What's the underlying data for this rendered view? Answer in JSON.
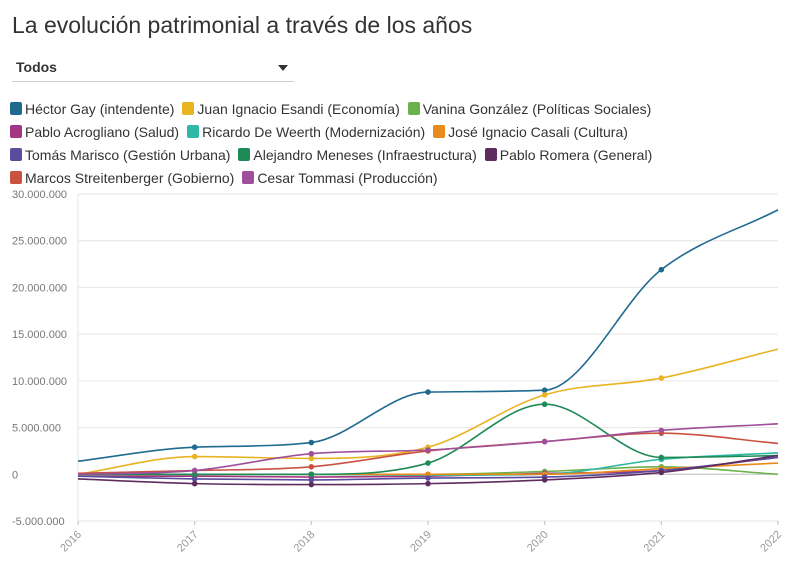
{
  "title": "La evolución patrimonial a través de los años",
  "filter": {
    "selected": "Todos"
  },
  "chart_data": {
    "type": "line",
    "title": "",
    "xlabel": "",
    "ylabel": "",
    "x": [
      "2016",
      "2017",
      "2018",
      "2019",
      "2020",
      "2021",
      "2022"
    ],
    "ylim": [
      -5000000,
      30000000
    ],
    "yticks": [
      -5000000,
      0,
      5000000,
      10000000,
      15000000,
      20000000,
      25000000,
      30000000
    ],
    "ytick_labels": [
      "-5.000.000",
      "0",
      "5.000.000",
      "10.000.000",
      "15.000.000",
      "20.000.000",
      "25.000.000",
      "30.000.000"
    ],
    "grid": "horizontal",
    "legend_position": "top",
    "series": [
      {
        "name": "Héctor Gay (intendente)",
        "color": "#1f6a8f",
        "values": [
          1400000,
          2900000,
          3400000,
          8800000,
          9000000,
          21900000,
          28300000
        ]
      },
      {
        "name": "Juan Ignacio Esandi (Economía)",
        "color": "#e8b422",
        "values": [
          0,
          1900000,
          1700000,
          2900000,
          8500000,
          10300000,
          13400000
        ]
      },
      {
        "name": "Vanina González (Políticas Sociales)",
        "color": "#6ab04c",
        "values": [
          0,
          0,
          0,
          0,
          300000,
          800000,
          0
        ]
      },
      {
        "name": "Pablo Acrogliano (Salud)",
        "color": "#a33581",
        "values": [
          -200000,
          -200000,
          -300000,
          -200000,
          100000,
          400000,
          1800000
        ]
      },
      {
        "name": "Ricardo De Weerth (Modernización)",
        "color": "#2fb8a6",
        "values": [
          0,
          0,
          0,
          -100000,
          0,
          1600000,
          2300000
        ]
      },
      {
        "name": "José Ignacio Casali (Cultura)",
        "color": "#ea8a1a",
        "values": [
          0,
          0,
          0,
          0,
          0,
          600000,
          1200000
        ]
      },
      {
        "name": "Tomás Marisco (Gestión Urbana)",
        "color": "#5a4d9e",
        "values": [
          -200000,
          -500000,
          -600000,
          -400000,
          -300000,
          400000,
          1800000
        ]
      },
      {
        "name": "Alejandro Meneses (Infraestructura)",
        "color": "#1e8a57",
        "values": [
          0,
          0,
          0,
          1200000,
          7500000,
          1800000,
          2000000
        ]
      },
      {
        "name": "Pablo Romera (General)",
        "color": "#5e2d5e",
        "values": [
          -500000,
          -1000000,
          -1100000,
          -1000000,
          -600000,
          200000,
          2000000
        ]
      },
      {
        "name": "Marcos Streitenberger (Gobierno)",
        "color": "#c9513f",
        "values": [
          100000,
          400000,
          800000,
          2500000,
          3500000,
          4400000,
          3300000
        ]
      },
      {
        "name": "Cesar Tommasi (Producción)",
        "color": "#a04f9c",
        "values": [
          0,
          400000,
          2200000,
          2600000,
          3500000,
          4700000,
          5400000
        ]
      }
    ]
  }
}
